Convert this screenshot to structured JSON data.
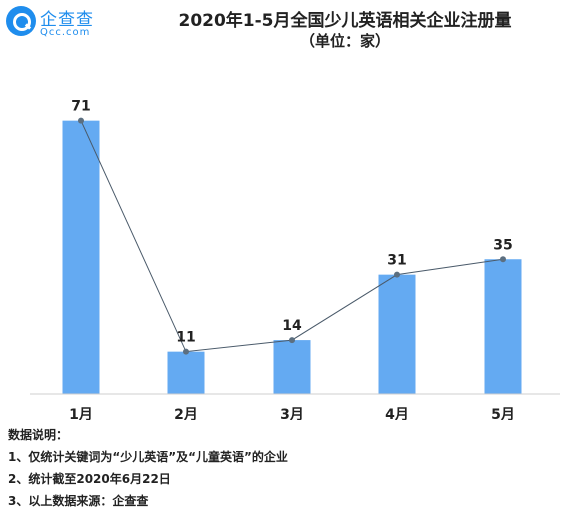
{
  "logo": {
    "name": "企查查",
    "domain": "Qcc.com"
  },
  "title": "2020年1-5月全国少儿英语相关企业注册量",
  "subtitle": "（单位：家）",
  "colors": {
    "bar": "#64aaf2",
    "line": "#4a5a6a",
    "marker": "#5c6f80",
    "brand": "#1f8ded"
  },
  "chart_data": {
    "type": "bar",
    "title": "2020年1-5月全国少儿英语相关企业注册量",
    "subtitle": "（单位：家）",
    "categories": [
      "1月",
      "2月",
      "3月",
      "4月",
      "5月"
    ],
    "series": [
      {
        "values": [
          71,
          11,
          14,
          31,
          35
        ]
      }
    ],
    "overlay": "line connecting bar tops",
    "data_labels": true,
    "ylim": [
      0,
      80
    ],
    "grid": false,
    "legend": "none"
  },
  "notes": {
    "heading": "数据说明：",
    "items": [
      "1、仅统计关键词为“少儿英语”及“儿童英语”的企业",
      "2、统计截至2020年6月22日",
      "3、以上数据来源：企查查"
    ]
  }
}
